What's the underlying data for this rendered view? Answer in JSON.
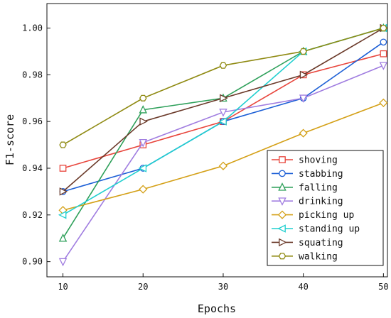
{
  "chart_data": {
    "type": "line",
    "xlabel": "Epochs",
    "ylabel": "F1-score",
    "x": [
      10,
      20,
      30,
      40,
      50
    ],
    "xticks": [
      "10",
      "20",
      "30",
      "40",
      "50"
    ],
    "xlim": [
      8,
      50.5
    ],
    "yticks": [
      "0.90",
      "0.92",
      "0.94",
      "0.96",
      "0.98",
      "1.00"
    ],
    "ylim": [
      0.8935,
      1.0105
    ],
    "grid": false,
    "legend_position": "bottom-right",
    "series": [
      {
        "name": "shoving",
        "color": "#e8453c",
        "marker": "square",
        "values": [
          0.94,
          0.95,
          0.96,
          0.98,
          0.989
        ]
      },
      {
        "name": "stabbing",
        "color": "#1c5fd6",
        "marker": "circle",
        "values": [
          0.93,
          0.94,
          0.96,
          0.97,
          0.994
        ]
      },
      {
        "name": "falling",
        "color": "#2ea05a",
        "marker": "triangle-up",
        "values": [
          0.91,
          0.965,
          0.97,
          0.99,
          1.0
        ]
      },
      {
        "name": "drinking",
        "color": "#a07de0",
        "marker": "triangle-down",
        "values": [
          0.9,
          0.951,
          0.964,
          0.97,
          0.984
        ]
      },
      {
        "name": "picking up",
        "color": "#d4a017",
        "marker": "diamond",
        "values": [
          0.922,
          0.931,
          0.941,
          0.955,
          0.968
        ]
      },
      {
        "name": "standing up",
        "color": "#20cfcf",
        "marker": "triangle-left",
        "values": [
          0.92,
          0.94,
          0.96,
          0.99,
          1.0
        ]
      },
      {
        "name": "squating",
        "color": "#6b3a2a",
        "marker": "triangle-right",
        "values": [
          0.93,
          0.96,
          0.97,
          0.98,
          1.0
        ]
      },
      {
        "name": "walking",
        "color": "#8f8a12",
        "marker": "hexagon",
        "values": [
          0.95,
          0.97,
          0.984,
          0.99,
          1.0
        ]
      }
    ]
  }
}
